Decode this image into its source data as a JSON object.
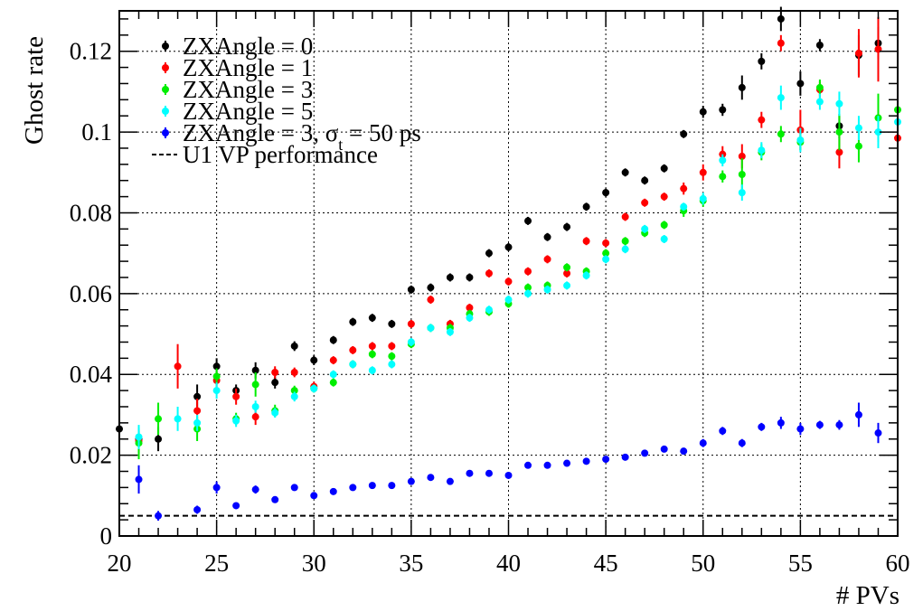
{
  "chart_data": {
    "type": "scatter",
    "xlabel": "# PVs",
    "ylabel": "Ghost rate",
    "xlim": [
      20,
      60
    ],
    "ylim": [
      0,
      0.13
    ],
    "x_ticks": [
      20,
      25,
      30,
      35,
      40,
      45,
      50,
      55,
      60
    ],
    "x_tick_labels": [
      "20",
      "25",
      "30",
      "35",
      "40",
      "45",
      "50",
      "55",
      "60"
    ],
    "y_ticks": [
      0,
      0.02,
      0.04,
      0.06,
      0.08,
      0.1,
      0.12
    ],
    "y_tick_labels": [
      "0",
      "0.02",
      "0.04",
      "0.06",
      "0.08",
      "0.1",
      "0.12"
    ],
    "grid": true,
    "legend_position": "top-left",
    "reference_line": {
      "label": "U1 VP performance",
      "value": 0.005,
      "style": "dashed",
      "color": "#000000"
    },
    "series": [
      {
        "name": "ZXAngle = 0",
        "color": "#000000",
        "x": [
          20,
          21,
          22,
          24,
          25,
          26,
          27,
          28,
          29,
          30,
          31,
          32,
          33,
          34,
          35,
          36,
          37,
          38,
          39,
          40,
          41,
          42,
          43,
          44,
          45,
          46,
          47,
          48,
          49,
          50,
          51,
          52,
          53,
          54,
          55,
          56,
          57,
          58,
          59
        ],
        "y": [
          0.0265,
          0.024,
          0.024,
          0.0345,
          0.042,
          0.036,
          0.041,
          0.038,
          0.047,
          0.0435,
          0.0485,
          0.053,
          0.054,
          0.0525,
          0.061,
          0.0615,
          0.064,
          0.064,
          0.07,
          0.0715,
          0.078,
          0.074,
          0.0765,
          0.0815,
          0.085,
          0.09,
          0.088,
          0.091,
          0.0995,
          0.105,
          0.1055,
          0.111,
          0.1175,
          0.128,
          0.112,
          0.1215,
          0.1015,
          0.119,
          0.122
        ],
        "err": [
          0.002,
          0.002,
          0.003,
          0.003,
          0.002,
          0.0015,
          0.002,
          0.0015,
          0.0012,
          0.0012,
          0.001,
          0.001,
          0.001,
          0.001,
          0.001,
          0.001,
          0.001,
          0.001,
          0.001,
          0.001,
          0.001,
          0.001,
          0.001,
          0.001,
          0.001,
          0.001,
          0.001,
          0.001,
          0.001,
          0.0015,
          0.0015,
          0.003,
          0.002,
          0.003,
          0.003,
          0.0015,
          0.003,
          0.005,
          0.004
        ]
      },
      {
        "name": "ZXAngle = 1",
        "color": "#ff0000",
        "x": [
          21,
          23,
          24,
          25,
          26,
          27,
          28,
          29,
          30,
          31,
          32,
          33,
          34,
          35,
          36,
          37,
          38,
          39,
          40,
          41,
          42,
          43,
          44,
          45,
          46,
          47,
          48,
          49,
          50,
          51,
          52,
          53,
          54,
          55,
          56,
          57,
          58,
          59,
          60
        ],
        "y": [
          0.0235,
          0.042,
          0.031,
          0.0385,
          0.0345,
          0.0295,
          0.0405,
          0.0405,
          0.037,
          0.0435,
          0.046,
          0.047,
          0.047,
          0.0525,
          0.0585,
          0.0525,
          0.0565,
          0.065,
          0.063,
          0.0655,
          0.0685,
          0.065,
          0.073,
          0.0725,
          0.079,
          0.0825,
          0.084,
          0.086,
          0.09,
          0.0945,
          0.094,
          0.103,
          0.122,
          0.1005,
          0.1105,
          0.095,
          0.1195,
          0.1205,
          0.0985
        ],
        "err": [
          0.003,
          0.0055,
          0.003,
          0.002,
          0.002,
          0.002,
          0.0015,
          0.0012,
          0.0012,
          0.001,
          0.001,
          0.001,
          0.001,
          0.001,
          0.001,
          0.001,
          0.001,
          0.001,
          0.001,
          0.001,
          0.001,
          0.001,
          0.001,
          0.001,
          0.001,
          0.001,
          0.001,
          0.0015,
          0.002,
          0.002,
          0.003,
          0.002,
          0.002,
          0.005,
          0.002,
          0.004,
          0.006,
          0.008,
          0.006
        ]
      },
      {
        "name": "ZXAngle = 3",
        "color": "#00ee00",
        "x": [
          21,
          22,
          24,
          25,
          26,
          27,
          28,
          29,
          30,
          31,
          32,
          33,
          34,
          35,
          36,
          37,
          38,
          39,
          40,
          41,
          42,
          43,
          44,
          45,
          46,
          47,
          48,
          49,
          50,
          51,
          52,
          53,
          54,
          55,
          56,
          57,
          58,
          59,
          60
        ],
        "y": [
          0.023,
          0.029,
          0.0265,
          0.0395,
          0.029,
          0.0375,
          0.031,
          0.036,
          0.0365,
          0.038,
          0.0425,
          0.045,
          0.0445,
          0.0475,
          0.0515,
          0.0515,
          0.055,
          0.0555,
          0.0575,
          0.0615,
          0.062,
          0.0665,
          0.0655,
          0.07,
          0.073,
          0.075,
          0.077,
          0.0805,
          0.083,
          0.089,
          0.0895,
          0.095,
          0.0995,
          0.0975,
          0.111,
          0.1,
          0.0965,
          0.1035,
          0.1055
        ],
        "err": [
          0.004,
          0.004,
          0.003,
          0.002,
          0.0015,
          0.003,
          0.0015,
          0.0012,
          0.001,
          0.001,
          0.001,
          0.001,
          0.001,
          0.001,
          0.001,
          0.001,
          0.001,
          0.001,
          0.001,
          0.001,
          0.001,
          0.001,
          0.001,
          0.001,
          0.001,
          0.001,
          0.001,
          0.0015,
          0.0015,
          0.0015,
          0.004,
          0.002,
          0.002,
          0.002,
          0.002,
          0.0045,
          0.004,
          0.006,
          0.005
        ]
      },
      {
        "name": "ZXAngle = 5",
        "color": "#00ffff",
        "x": [
          21,
          23,
          24,
          25,
          26,
          27,
          28,
          29,
          30,
          31,
          32,
          33,
          34,
          35,
          36,
          37,
          38,
          39,
          40,
          41,
          42,
          43,
          44,
          45,
          46,
          47,
          48,
          49,
          50,
          51,
          52,
          53,
          54,
          55,
          56,
          57,
          58,
          59,
          60
        ],
        "y": [
          0.0245,
          0.029,
          0.028,
          0.036,
          0.0285,
          0.032,
          0.0305,
          0.0345,
          0.0365,
          0.04,
          0.0425,
          0.041,
          0.0425,
          0.048,
          0.0515,
          0.0505,
          0.054,
          0.056,
          0.0585,
          0.06,
          0.061,
          0.062,
          0.0645,
          0.0685,
          0.071,
          0.076,
          0.0735,
          0.0815,
          0.0835,
          0.093,
          0.085,
          0.0955,
          0.1085,
          0.098,
          0.1075,
          0.107,
          0.101,
          0.1,
          0.1025
        ],
        "err": [
          0.003,
          0.003,
          0.002,
          0.002,
          0.0015,
          0.0015,
          0.0012,
          0.0012,
          0.001,
          0.001,
          0.001,
          0.001,
          0.001,
          0.001,
          0.001,
          0.001,
          0.001,
          0.001,
          0.001,
          0.001,
          0.001,
          0.001,
          0.001,
          0.001,
          0.001,
          0.001,
          0.001,
          0.001,
          0.0015,
          0.0015,
          0.002,
          0.002,
          0.003,
          0.003,
          0.002,
          0.003,
          0.003,
          0.004,
          0.004
        ]
      },
      {
        "name": "ZXAngle = 3, σt = 50 ps",
        "color": "#0000ff",
        "x": [
          21,
          22,
          24,
          25,
          26,
          27,
          28,
          29,
          30,
          31,
          32,
          33,
          34,
          35,
          36,
          37,
          38,
          39,
          40,
          41,
          42,
          43,
          44,
          45,
          46,
          47,
          48,
          49,
          50,
          51,
          52,
          53,
          54,
          55,
          56,
          57,
          58,
          59
        ],
        "y": [
          0.014,
          0.005,
          0.0065,
          0.012,
          0.0075,
          0.0115,
          0.009,
          0.012,
          0.01,
          0.011,
          0.012,
          0.0125,
          0.0125,
          0.0135,
          0.0145,
          0.0135,
          0.0155,
          0.0155,
          0.015,
          0.0175,
          0.0175,
          0.018,
          0.0185,
          0.019,
          0.0195,
          0.0205,
          0.0215,
          0.021,
          0.023,
          0.026,
          0.023,
          0.027,
          0.028,
          0.0265,
          0.0275,
          0.0275,
          0.03,
          0.0255
        ],
        "err": [
          0.0035,
          0.0012,
          0.001,
          0.0015,
          0.0008,
          0.001,
          0.0008,
          0.0008,
          0.0008,
          0.0008,
          0.0008,
          0.0008,
          0.0008,
          0.0008,
          0.0008,
          0.0008,
          0.0008,
          0.0008,
          0.0008,
          0.0008,
          0.0008,
          0.0008,
          0.0008,
          0.0008,
          0.0008,
          0.0008,
          0.0008,
          0.0008,
          0.001,
          0.001,
          0.001,
          0.001,
          0.0015,
          0.0015,
          0.001,
          0.0012,
          0.003,
          0.0025
        ]
      }
    ]
  }
}
